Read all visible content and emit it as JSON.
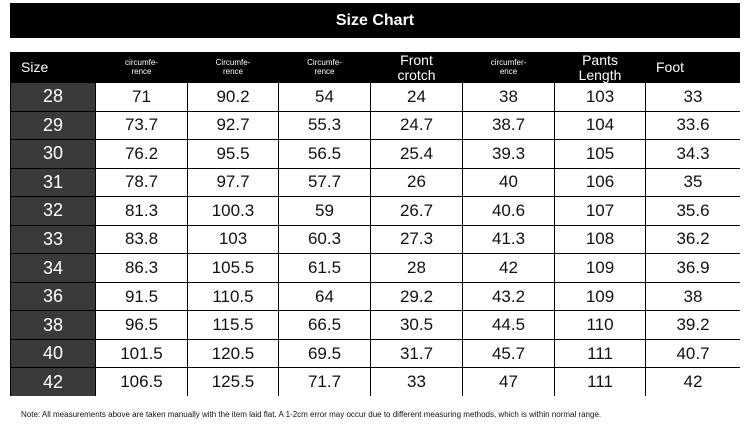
{
  "header": {
    "title": "Size Chart"
  },
  "table": {
    "columns": [
      [
        "Size"
      ],
      [
        "circumfe-",
        "rence"
      ],
      [
        "Circumfe-",
        "rence"
      ],
      [
        "Circumfe-",
        "rence"
      ],
      [
        "Front",
        "crotch"
      ],
      [
        "circumfer-",
        "ence"
      ],
      [
        "Pants",
        "Length"
      ],
      [
        "Foot"
      ]
    ],
    "rows": [
      [
        "28",
        "71",
        "90.2",
        "54",
        "24",
        "38",
        "103",
        "33"
      ],
      [
        "29",
        "73.7",
        "92.7",
        "55.3",
        "24.7",
        "38.7",
        "104",
        "33.6"
      ],
      [
        "30",
        "76.2",
        "95.5",
        "56.5",
        "25.4",
        "39.3",
        "105",
        "34.3"
      ],
      [
        "31",
        "78.7",
        "97.7",
        "57.7",
        "26",
        "40",
        "106",
        "35"
      ],
      [
        "32",
        "81.3",
        "100.3",
        "59",
        "26.7",
        "40.6",
        "107",
        "35.6"
      ],
      [
        "33",
        "83.8",
        "103",
        "60.3",
        "27.3",
        "41.3",
        "108",
        "36.2"
      ],
      [
        "34",
        "86.3",
        "105.5",
        "61.5",
        "28",
        "42",
        "109",
        "36.9"
      ],
      [
        "36",
        "91.5",
        "110.5",
        "64",
        "29.2",
        "43.2",
        "109",
        "38"
      ],
      [
        "38",
        "96.5",
        "115.5",
        "66.5",
        "30.5",
        "44.5",
        "110",
        "39.2"
      ],
      [
        "40",
        "101.5",
        "120.5",
        "69.5",
        "31.7",
        "45.7",
        "111",
        "40.7"
      ],
      [
        "42",
        "106.5",
        "125.5",
        "71.7",
        "33",
        "47",
        "111",
        "42"
      ]
    ]
  },
  "note": "Note: All measurements above are taken manually with the item laid flat. A 1-2cm error may occur due to different measuring methods, which is within normal range."
}
